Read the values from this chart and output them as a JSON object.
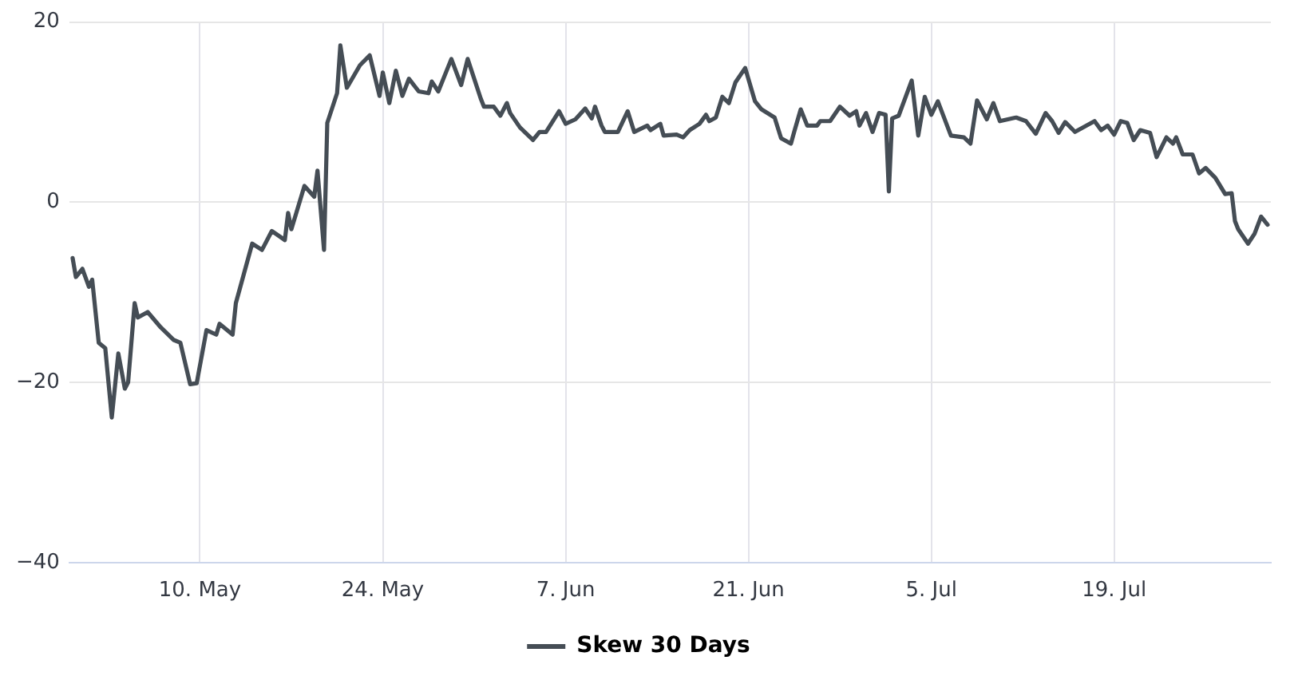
{
  "chart_data": {
    "type": "line",
    "legend": "bottom",
    "grid": true,
    "marker": "none",
    "line_style": "solid",
    "xlim": [
      "--04-30",
      "--07-31"
    ],
    "xticks": [
      {
        "value": "--05-10",
        "label": "10. May"
      },
      {
        "value": "--05-24",
        "label": "24. May"
      },
      {
        "value": "--06-07",
        "label": "7. Jun"
      },
      {
        "value": "--06-21",
        "label": "21. Jun"
      },
      {
        "value": "--07-05",
        "label": "5. Jul"
      },
      {
        "value": "--07-19",
        "label": "19. Jul"
      }
    ],
    "ylim": [
      -40,
      20
    ],
    "yticks": [
      {
        "value": -40,
        "label": "−40"
      },
      {
        "value": -20,
        "label": "−20"
      },
      0,
      20
    ],
    "x": [
      "--04-30T06:00",
      "--04-30T12:00",
      "--05-01T00:00",
      "--05-01T12:00",
      "--05-01T18:00",
      "--05-02T06:00",
      "--05-02T18:00",
      "--05-03T06:00",
      "--05-03T18:00",
      "--05-04T06:00",
      "--05-04T12:00",
      "--05-05T00:00",
      "--05-05T06:00",
      "--05-06T00:00",
      "--05-07T00:00",
      "--05-08T00:00",
      "--05-08T12:00",
      "--05-09T06:00",
      "--05-09T18:00",
      "--05-10T12:00",
      "--05-11T06:00",
      "--05-11T12:00",
      "--05-12T12:00",
      "--05-12T18:00",
      "--05-14T00:00",
      "--05-14T18:00",
      "--05-15T12:00",
      "--05-16T12:00",
      "--05-16T18:00",
      "--05-17T00:00",
      "--05-18T00:00",
      "--05-18T18:00",
      "--05-19T00:00",
      "--05-19T12:00",
      "--05-19T18:00",
      "--05-20T12:00",
      "--05-20T18:00",
      "--05-21T06:00",
      "--05-22T06:00",
      "--05-23T00:00",
      "--05-23T18:00",
      "--05-24T00:00",
      "--05-24T12:00",
      "--05-25T00:00",
      "--05-25T12:00",
      "--05-26T00:00",
      "--05-26T18:00",
      "--05-27T12:00",
      "--05-27T18:00",
      "--05-28T06:00",
      "--05-29T06:00",
      "--05-30T00:00",
      "--05-30T12:00",
      "--05-31T12:00",
      "--05-31T18:00",
      "--06-01T12:00",
      "--06-02T00:00",
      "--06-02T12:00",
      "--06-02T18:00",
      "--06-03T12:00",
      "--06-04T12:00",
      "--06-05T00:00",
      "--06-05T12:00",
      "--06-06T12:00",
      "--06-07T00:00",
      "--06-07T18:00",
      "--06-08T12:00",
      "--06-09T00:00",
      "--06-09T06:00",
      "--06-09T18:00",
      "--06-10T00:00",
      "--06-11T00:00",
      "--06-11T18:00",
      "--06-12T06:00",
      "--06-13T06:00",
      "--06-13T12:00",
      "--06-14T06:00",
      "--06-14T12:00",
      "--06-15T12:00",
      "--06-16T00:00",
      "--06-16T12:00",
      "--06-17T06:00",
      "--06-17T18:00",
      "--06-18T00:00",
      "--06-18T12:00",
      "--06-19T00:00",
      "--06-19T12:00",
      "--06-20T00:00",
      "--06-20T18:00",
      "--06-21T12:00",
      "--06-22T00:00",
      "--06-23T00:00",
      "--06-23T12:00",
      "--06-24T06:00",
      "--06-24T12:00",
      "--06-25T00:00",
      "--06-25T12:00",
      "--06-26T06:00",
      "--06-26T12:00",
      "--06-27T06:00",
      "--06-28T00:00",
      "--06-28T18:00",
      "--06-29T06:00",
      "--06-29T12:00",
      "--06-30T00:00",
      "--06-30T12:00",
      "--07-01T00:00",
      "--07-01T12:00",
      "--07-01T18:00",
      "--07-02T00:00",
      "--07-02T12:00",
      "--07-03T12:00",
      "--07-04T00:00",
      "--07-04T12:00",
      "--07-05T00:00",
      "--07-05T12:00",
      "--07-06T12:00",
      "--07-07T12:00",
      "--07-08T00:00",
      "--07-08T12:00",
      "--07-09T06:00",
      "--07-09T18:00",
      "--07-10T06:00",
      "--07-11T12:00",
      "--07-12T06:00",
      "--07-13T00:00",
      "--07-13T18:00",
      "--07-14T06:00",
      "--07-14T18:00",
      "--07-15T06:00",
      "--07-16T00:00",
      "--07-17T12:00",
      "--07-18T00:00",
      "--07-18T12:00",
      "--07-19T00:00",
      "--07-19T12:00",
      "--07-20T00:00",
      "--07-20T12:00",
      "--07-21T00:00",
      "--07-21T18:00",
      "--07-22T06:00",
      "--07-23T00:00",
      "--07-23T12:00",
      "--07-23T18:00",
      "--07-24T06:00",
      "--07-25T00:00",
      "--07-25T12:00",
      "--07-26T00:00",
      "--07-26T18:00",
      "--07-27T12:00",
      "--07-28T00:00",
      "--07-28T06:00",
      "--07-28T12:00",
      "--07-29T06:00",
      "--07-29T18:00",
      "--07-30T06:00",
      "--07-30T18:00"
    ],
    "series": [
      {
        "name": "Skew 30 Days",
        "color": "#454d55",
        "values": [
          -6.2,
          -8.3,
          -7.4,
          -9.4,
          -8.6,
          -15.6,
          -16.2,
          -23.9,
          -16.8,
          -20.7,
          -20,
          -11.2,
          -12.8,
          -12.2,
          -13.9,
          -15.3,
          -15.6,
          -20.2,
          -20.1,
          -14.2,
          -14.7,
          -13.5,
          -14.7,
          -11.2,
          -4.6,
          -5.3,
          -3.2,
          -4.2,
          -1.2,
          -3,
          1.8,
          0.6,
          3.5,
          -5.3,
          8.8,
          12.1,
          17.4,
          12.7,
          15.2,
          16.3,
          11.8,
          14.4,
          11,
          14.6,
          11.8,
          13.7,
          12.3,
          12.1,
          13.4,
          12.3,
          15.9,
          13,
          15.9,
          11.5,
          10.6,
          10.6,
          9.6,
          11,
          9.9,
          8.3,
          6.9,
          7.8,
          7.8,
          10.1,
          8.7,
          9.2,
          10.4,
          9.3,
          10.6,
          8.5,
          7.8,
          7.8,
          10.1,
          7.8,
          8.5,
          8,
          8.7,
          7.4,
          7.5,
          7.2,
          8,
          8.7,
          9.7,
          9,
          9.4,
          11.7,
          11,
          13.3,
          14.9,
          11.2,
          10.3,
          9.4,
          7.1,
          6.5,
          7.8,
          10.3,
          8.5,
          8.5,
          9,
          9,
          10.6,
          9.6,
          10.1,
          8.5,
          9.9,
          7.8,
          9.9,
          9.7,
          1.2,
          9.3,
          9.6,
          13.5,
          7.4,
          11.7,
          9.7,
          11.2,
          7.4,
          7.2,
          6.5,
          11.3,
          9.2,
          11,
          9,
          9.4,
          9,
          7.6,
          9.9,
          9,
          7.7,
          8.9,
          7.8,
          9,
          8,
          8.5,
          7.5,
          9,
          8.8,
          6.9,
          8,
          7.7,
          5,
          7.2,
          6.5,
          7.2,
          5.3,
          5.3,
          3.2,
          3.8,
          2.7,
          0.9,
          1,
          -2.1,
          -3,
          -4.6,
          -3.5,
          -1.6,
          -2.5
        ]
      }
    ]
  }
}
